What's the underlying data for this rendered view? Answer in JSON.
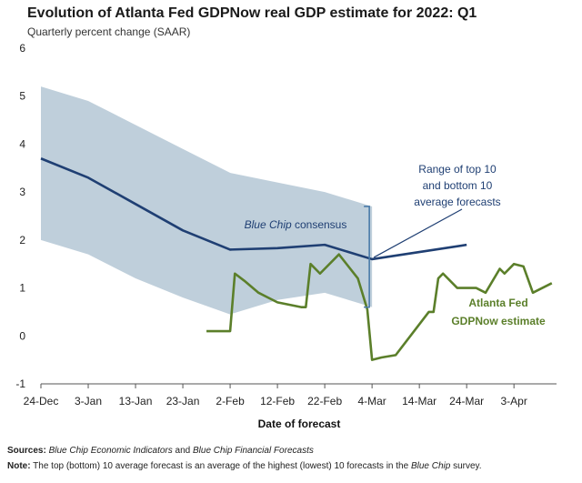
{
  "chart_data": {
    "type": "line",
    "title": "Evolution of Atlanta Fed GDPNow real GDP estimate for 2022: Q1",
    "subtitle": "Quarterly percent change (SAAR)",
    "xlabel": "Date of forecast",
    "ylim": [
      -1,
      6
    ],
    "yticks": [
      "-1",
      "0",
      "1",
      "2",
      "3",
      "4",
      "5",
      "6"
    ],
    "xlim": [
      "2021-12-24",
      "2022-04-12"
    ],
    "xticks": [
      {
        "date": "2021-12-24",
        "label": "24-Dec"
      },
      {
        "date": "2022-01-03",
        "label": "3-Jan"
      },
      {
        "date": "2022-01-13",
        "label": "13-Jan"
      },
      {
        "date": "2022-01-23",
        "label": "23-Jan"
      },
      {
        "date": "2022-02-02",
        "label": "2-Feb"
      },
      {
        "date": "2022-02-12",
        "label": "12-Feb"
      },
      {
        "date": "2022-02-22",
        "label": "22-Feb"
      },
      {
        "date": "2022-03-04",
        "label": "4-Mar"
      },
      {
        "date": "2022-03-14",
        "label": "14-Mar"
      },
      {
        "date": "2022-03-24",
        "label": "24-Mar"
      },
      {
        "date": "2022-04-03",
        "label": "3-Apr"
      }
    ],
    "grid": false,
    "colors": {
      "consensus": "#1f3f73",
      "gdpnow": "#5b7f2a",
      "range": "#bfcfdb",
      "bracket": "#4a7aa8"
    },
    "range_band": {
      "x": [
        "2021-12-24",
        "2022-01-03",
        "2022-01-13",
        "2022-01-23",
        "2022-02-02",
        "2022-02-12",
        "2022-02-22",
        "2022-03-04"
      ],
      "upper": [
        5.2,
        4.9,
        4.4,
        3.9,
        3.4,
        3.2,
        3.0,
        2.7
      ],
      "lower": [
        2.0,
        1.7,
        1.2,
        0.8,
        0.45,
        0.75,
        0.9,
        0.6
      ]
    },
    "series": [
      {
        "x": [
          "2021-12-24",
          "2022-01-03",
          "2022-01-13",
          "2022-01-23",
          "2022-02-02",
          "2022-02-12",
          "2022-02-22",
          "2022-03-04",
          "2022-03-14",
          "2022-03-24"
        ],
        "values": [
          3.7,
          3.3,
          2.75,
          2.2,
          1.8,
          1.83,
          1.9,
          1.6,
          1.75,
          1.9
        ]
      },
      {
        "x": [
          "2022-01-28",
          "2022-01-31",
          "2022-02-02",
          "2022-02-03",
          "2022-02-05",
          "2022-02-08",
          "2022-02-10",
          "2022-02-12",
          "2022-02-17",
          "2022-02-18",
          "2022-02-19",
          "2022-02-21",
          "2022-02-25",
          "2022-03-01",
          "2022-03-03",
          "2022-03-04",
          "2022-03-06",
          "2022-03-09",
          "2022-03-16",
          "2022-03-17",
          "2022-03-18",
          "2022-03-19",
          "2022-03-22",
          "2022-03-26",
          "2022-03-28",
          "2022-03-31",
          "2022-04-01",
          "2022-04-03",
          "2022-04-05",
          "2022-04-07",
          "2022-04-11"
        ],
        "values": [
          0.1,
          0.1,
          0.1,
          1.3,
          1.15,
          0.9,
          0.8,
          0.7,
          0.6,
          0.6,
          1.5,
          1.3,
          1.7,
          1.2,
          0.55,
          -0.5,
          -0.45,
          -0.4,
          0.5,
          0.5,
          1.2,
          1.3,
          1.0,
          1.0,
          0.9,
          1.4,
          1.3,
          1.5,
          1.45,
          0.9,
          1.1
        ]
      }
    ],
    "annotations": {
      "range": [
        "Range of top 10",
        "and bottom 10",
        "average forecasts"
      ],
      "consensus_italic": "Blue Chip",
      "consensus_rest": " consensus",
      "gdpnow": [
        "Atlanta Fed",
        "GDPNow estimate"
      ]
    }
  },
  "footer": {
    "sources_label": "Sources:",
    "sources_italic_1": "Blue Chip Economic Indicators",
    "sources_mid": " and ",
    "sources_italic_2": "Blue Chip Financial Forecasts",
    "note_label": "Note:",
    "note_text_1": " The top (bottom) 10 average forecast is an average of the highest (lowest) 10 forecasts in the ",
    "note_italic": "Blue Chip",
    "note_text_2": " survey."
  }
}
